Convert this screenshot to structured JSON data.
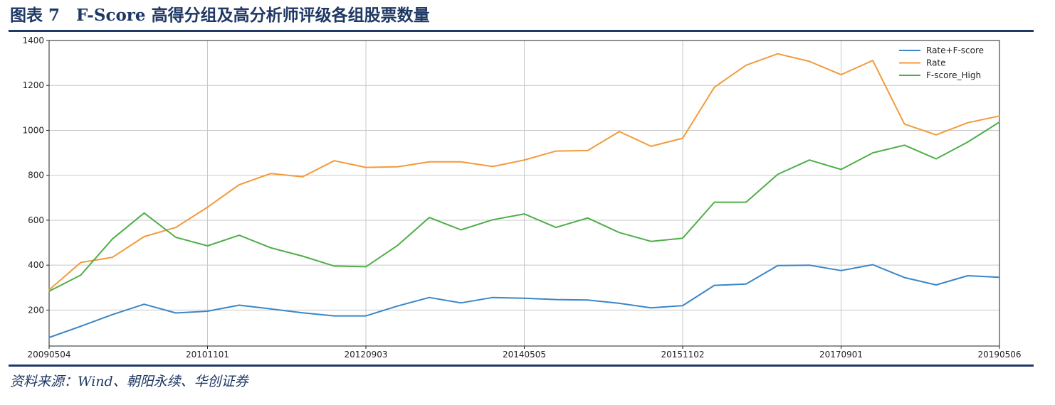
{
  "title": "图表 7　F-Score 高得分组及高分析师评级各组股票数量",
  "source": "资料来源：Wind、朝阳永续、华创证券",
  "colors": {
    "brand": "#1f3864",
    "rate_fscore": "#3a86c8",
    "rate": "#f39a3c",
    "fscore_high": "#4fae48",
    "grid": "#c8c8c8"
  },
  "chart_data": {
    "type": "line",
    "x_tick_labels": [
      "20090504",
      "20101101",
      "20120903",
      "20140505",
      "20151102",
      "20170901",
      "20190506"
    ],
    "y_ticks": [
      200,
      400,
      600,
      800,
      1000,
      1200,
      1400
    ],
    "ylim": [
      40,
      1400
    ],
    "grid": true,
    "legend_position": "top-right",
    "series": [
      {
        "name": "Rate+F-score",
        "color": "#3a86c8",
        "values": [
          78,
          128,
          180,
          226,
          187,
          195,
          222,
          205,
          188,
          174,
          174,
          218,
          256,
          232,
          256,
          253,
          247,
          245,
          230,
          210,
          220,
          310,
          316,
          398,
          400,
          376,
          402,
          345,
          312,
          353,
          346
        ]
      },
      {
        "name": "Rate",
        "color": "#f39a3c",
        "values": [
          290,
          412,
          435,
          527,
          568,
          658,
          758,
          808,
          793,
          865,
          835,
          838,
          860,
          860,
          839,
          868,
          908,
          910,
          995,
          929,
          965,
          1192,
          1290,
          1341,
          1307,
          1248,
          1311,
          1028,
          980,
          1034,
          1064
        ]
      },
      {
        "name": "F-score_High",
        "color": "#4fae48",
        "values": [
          284,
          356,
          517,
          632,
          524,
          486,
          533,
          477,
          440,
          396,
          393,
          488,
          612,
          557,
          602,
          628,
          568,
          610,
          545,
          506,
          520,
          680,
          680,
          804,
          868,
          826,
          900,
          934,
          873,
          948,
          1037
        ]
      }
    ]
  }
}
